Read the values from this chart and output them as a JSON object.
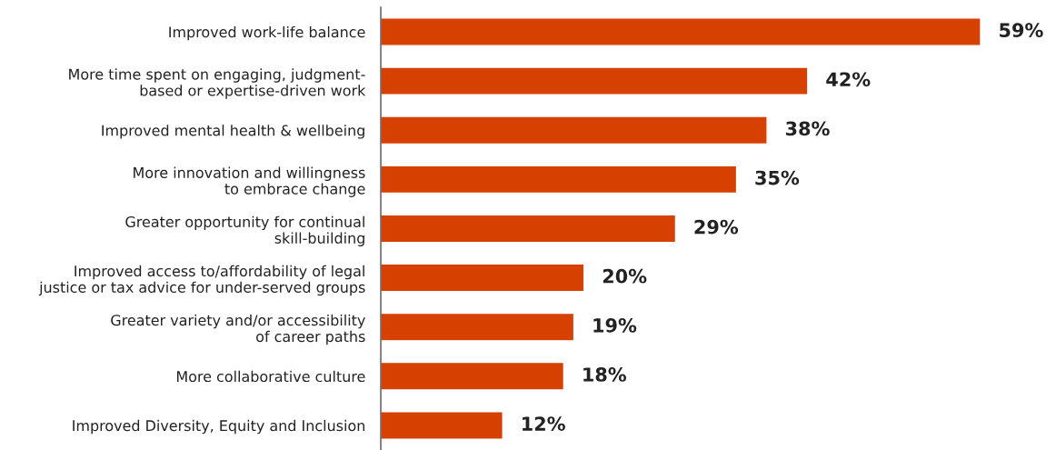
{
  "chart_data": {
    "type": "bar",
    "orientation": "horizontal",
    "categories": [
      "Improved work-life balance",
      "More time spent on engaging, judgment-\nbased or expertise-driven work",
      "Improved mental health & wellbeing",
      "More innovation and willingness\nto embrace change",
      "Greater opportunity for continual\nskill-building",
      "Improved access to/affordability of legal\njustice or tax advice for under-served groups",
      "Greater variety and/or accessibility\nof career paths",
      "More collaborative culture",
      "Improved Diversity, Equity and Inclusion"
    ],
    "values": [
      59,
      42,
      38,
      35,
      29,
      20,
      19,
      18,
      12
    ],
    "value_labels": [
      "59%",
      "42%",
      "38%",
      "35%",
      "29%",
      "20%",
      "19%",
      "18%",
      "12%"
    ],
    "color": "#d64000",
    "grid": false,
    "legend": false
  }
}
